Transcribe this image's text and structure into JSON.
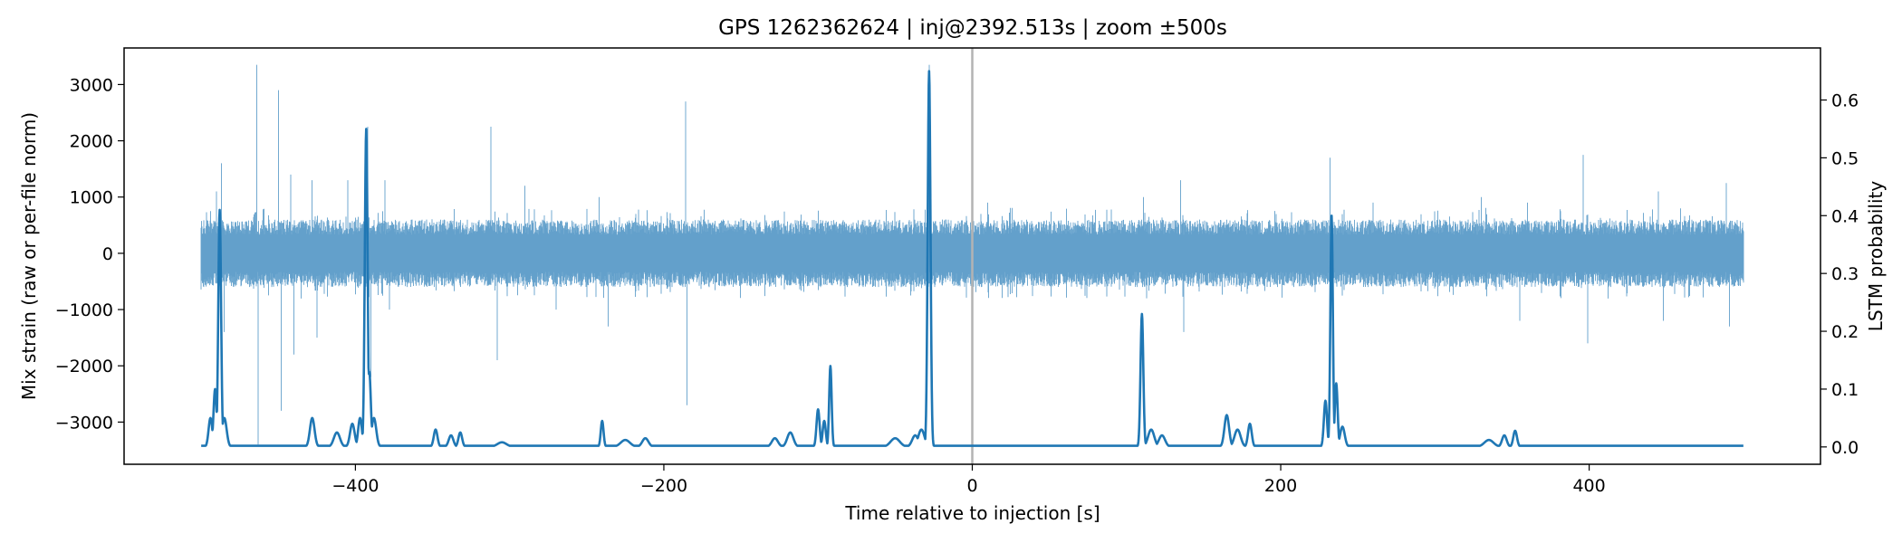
{
  "chart_data": {
    "type": "line",
    "title": "GPS 1262362624 | inj@2392.513s | zoom ±500s",
    "xlabel": "Time relative to injection [s]",
    "ylabel_left": "Mix strain (raw or per-file norm)",
    "ylabel_right": "LSTM probability",
    "xlim": [
      -550,
      550
    ],
    "ylim_left": [
      -3750,
      3650
    ],
    "ylim_right": [
      -0.03,
      0.69
    ],
    "xticks": [
      -400,
      -200,
      0,
      200,
      400
    ],
    "yticks_left": [
      -3000,
      -2000,
      -1000,
      0,
      1000,
      2000,
      3000
    ],
    "yticks_right": [
      0.0,
      0.1,
      0.2,
      0.3,
      0.4,
      0.5,
      0.6
    ],
    "grid": false,
    "legend": "none",
    "injection_marker_x": 0,
    "colors": {
      "strain": "#5b9bc8",
      "probability": "#1f77b4",
      "marker": "#b3b3b3"
    },
    "strain_envelope": {
      "x_range": [
        -500,
        500
      ],
      "typical_amplitude": 600,
      "spikes": [
        {
          "x": -494,
          "y": 750
        },
        {
          "x": -490,
          "y": 1100
        },
        {
          "x": -487,
          "y": 1600
        },
        {
          "x": -485,
          "y": -1400
        },
        {
          "x": -464,
          "y": 3350
        },
        {
          "x": -463,
          "y": -3400
        },
        {
          "x": -450,
          "y": 2900
        },
        {
          "x": -448,
          "y": -2800
        },
        {
          "x": -442,
          "y": 1400
        },
        {
          "x": -440,
          "y": -1800
        },
        {
          "x": -428,
          "y": 1300
        },
        {
          "x": -425,
          "y": -1500
        },
        {
          "x": -405,
          "y": 1300
        },
        {
          "x": -392,
          "y": 2250
        },
        {
          "x": -390,
          "y": -2200
        },
        {
          "x": -381,
          "y": 1300
        },
        {
          "x": -378,
          "y": -1000
        },
        {
          "x": -312,
          "y": 2250
        },
        {
          "x": -308,
          "y": -1900
        },
        {
          "x": -290,
          "y": 1200
        },
        {
          "x": -270,
          "y": -1000
        },
        {
          "x": -242,
          "y": 1000
        },
        {
          "x": -236,
          "y": -1300
        },
        {
          "x": -186,
          "y": 2700
        },
        {
          "x": -185,
          "y": -2700
        },
        {
          "x": -28,
          "y": 3350
        },
        {
          "x": 10,
          "y": 900
        },
        {
          "x": 111,
          "y": 1000
        },
        {
          "x": 113,
          "y": -800
        },
        {
          "x": 135,
          "y": 1300
        },
        {
          "x": 137,
          "y": -1400
        },
        {
          "x": 232,
          "y": 1700
        },
        {
          "x": 234,
          "y": -1500
        },
        {
          "x": 260,
          "y": 900
        },
        {
          "x": 330,
          "y": 1000
        },
        {
          "x": 355,
          "y": -1200
        },
        {
          "x": 360,
          "y": 900
        },
        {
          "x": 396,
          "y": 1750
        },
        {
          "x": 399,
          "y": -1600
        },
        {
          "x": 445,
          "y": 1100
        },
        {
          "x": 448,
          "y": -1200
        },
        {
          "x": 489,
          "y": 1250
        },
        {
          "x": 491,
          "y": -1300
        }
      ]
    },
    "probability_series": {
      "baseline": 0.002,
      "bumps": [
        {
          "x": -494,
          "y": 0.05,
          "w": 1.2
        },
        {
          "x": -491,
          "y": 0.1,
          "w": 1.0
        },
        {
          "x": -488,
          "y": 0.41,
          "w": 0.9
        },
        {
          "x": -485,
          "y": 0.05,
          "w": 1.5
        },
        {
          "x": -428,
          "y": 0.05,
          "w": 1.5
        },
        {
          "x": -412,
          "y": 0.025,
          "w": 2.0
        },
        {
          "x": -402,
          "y": 0.04,
          "w": 1.5
        },
        {
          "x": -397,
          "y": 0.05,
          "w": 1.2
        },
        {
          "x": -393,
          "y": 0.55,
          "w": 0.9
        },
        {
          "x": -391,
          "y": 0.13,
          "w": 1.0
        },
        {
          "x": -388,
          "y": 0.05,
          "w": 1.5
        },
        {
          "x": -348,
          "y": 0.03,
          "w": 1.2
        },
        {
          "x": -338,
          "y": 0.02,
          "w": 1.5
        },
        {
          "x": -332,
          "y": 0.025,
          "w": 1.2
        },
        {
          "x": -305,
          "y": 0.008,
          "w": 3.0
        },
        {
          "x": -240,
          "y": 0.045,
          "w": 0.9
        },
        {
          "x": -225,
          "y": 0.012,
          "w": 3.0
        },
        {
          "x": -212,
          "y": 0.015,
          "w": 2.0
        },
        {
          "x": -128,
          "y": 0.015,
          "w": 2.0
        },
        {
          "x": -118,
          "y": 0.025,
          "w": 2.0
        },
        {
          "x": -100,
          "y": 0.065,
          "w": 1.0
        },
        {
          "x": -96,
          "y": 0.045,
          "w": 1.0
        },
        {
          "x": -92,
          "y": 0.14,
          "w": 0.8
        },
        {
          "x": -50,
          "y": 0.015,
          "w": 3.0
        },
        {
          "x": -37,
          "y": 0.02,
          "w": 2.0
        },
        {
          "x": -33,
          "y": 0.03,
          "w": 2.0
        },
        {
          "x": -28,
          "y": 0.65,
          "w": 0.9
        },
        {
          "x": 110,
          "y": 0.23,
          "w": 0.9
        },
        {
          "x": 116,
          "y": 0.03,
          "w": 2.0
        },
        {
          "x": 123,
          "y": 0.02,
          "w": 2.0
        },
        {
          "x": 165,
          "y": 0.055,
          "w": 1.5
        },
        {
          "x": 172,
          "y": 0.03,
          "w": 2.0
        },
        {
          "x": 180,
          "y": 0.04,
          "w": 1.2
        },
        {
          "x": 229,
          "y": 0.08,
          "w": 1.0
        },
        {
          "x": 233,
          "y": 0.4,
          "w": 0.8
        },
        {
          "x": 236,
          "y": 0.11,
          "w": 0.9
        },
        {
          "x": 240,
          "y": 0.035,
          "w": 1.5
        },
        {
          "x": 335,
          "y": 0.012,
          "w": 3.0
        },
        {
          "x": 345,
          "y": 0.02,
          "w": 1.5
        },
        {
          "x": 352,
          "y": 0.028,
          "w": 1.2
        }
      ]
    }
  }
}
